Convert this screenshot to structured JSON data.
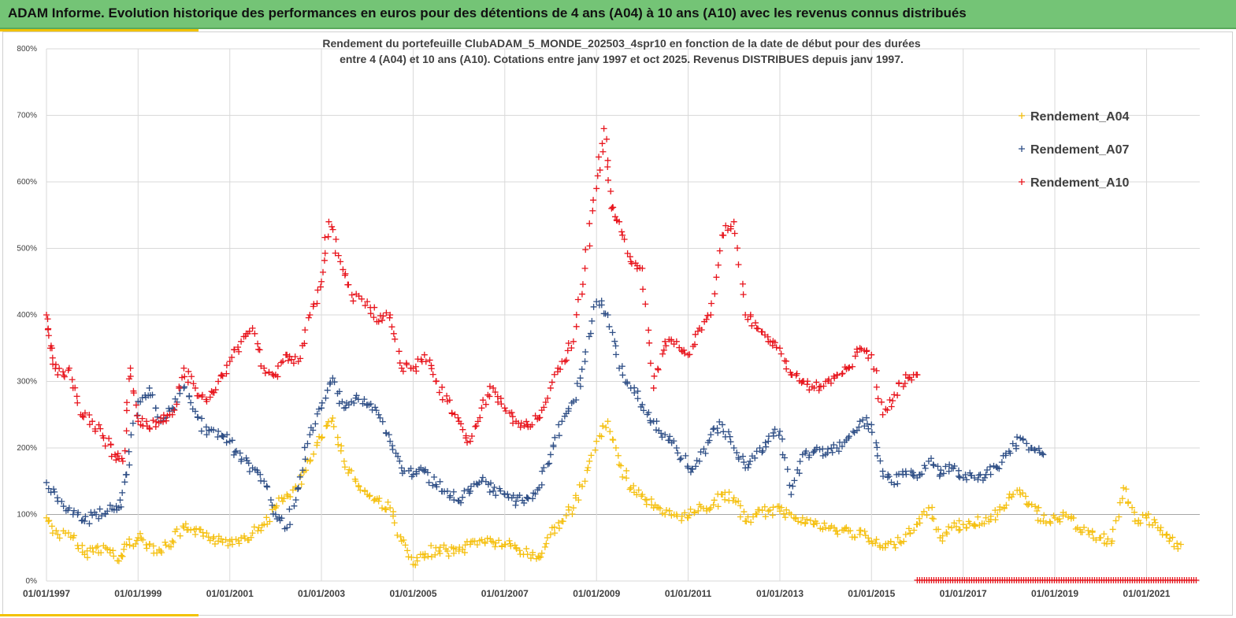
{
  "header": {
    "title": "ADAM Informe. Evolution historique des performances en euros pour des détentions de 4 ans (A04) à 10 ans (A10) avec les revenus connus distribués"
  },
  "colors": {
    "banner": "#74c476",
    "accent": "#f2c200",
    "A04": "#f5c010",
    "A07": "#2f4f86",
    "A10": "#e8141c",
    "grid": "#d9d9d9"
  },
  "chart_data": {
    "type": "scatter",
    "title_line1": "Rendement du portefeuille ClubADAM_5_MONDE_202503_4spr10  en fonction de la date de début pour des durées",
    "title_line2": "entre 4 (A04) et 10 ans (A10). Cotations entre janv 1997 et oct 2025. Revenus DISTRIBUES depuis janv 1997.",
    "xlabel": "",
    "ylabel": "",
    "xlim": [
      "1997-01-01",
      "2022-03-01"
    ],
    "ylim": [
      0,
      800
    ],
    "y_ticks": [
      "0%",
      "100%",
      "200%",
      "300%",
      "400%",
      "500%",
      "600%",
      "700%",
      "800%"
    ],
    "x_ticks": [
      "01/01/1997",
      "01/01/1999",
      "01/01/2001",
      "01/01/2003",
      "01/01/2005",
      "01/01/2007",
      "01/01/2009",
      "01/01/2011",
      "01/01/2013",
      "01/01/2015",
      "01/01/2017",
      "01/01/2019",
      "01/01/2021"
    ],
    "grid": true,
    "legend_position": "top-right",
    "marker": "+",
    "series": [
      {
        "name": "Rendement_A04",
        "color": "#f5c010",
        "points": [
          [
            "1997-01-01",
            95
          ],
          [
            "1997-04-01",
            70
          ],
          [
            "1997-08-01",
            65
          ],
          [
            "1997-11-01",
            40
          ],
          [
            "1998-02-01",
            50
          ],
          [
            "1998-05-01",
            48
          ],
          [
            "1998-08-01",
            30
          ],
          [
            "1998-10-01",
            55
          ],
          [
            "1999-01-01",
            65
          ],
          [
            "1999-04-01",
            55
          ],
          [
            "1999-07-01",
            45
          ],
          [
            "1999-10-01",
            60
          ],
          [
            "2000-01-01",
            80
          ],
          [
            "2000-04-01",
            70
          ],
          [
            "2000-07-01",
            72
          ],
          [
            "2000-10-01",
            60
          ],
          [
            "2001-01-01",
            60
          ],
          [
            "2001-04-01",
            65
          ],
          [
            "2001-07-01",
            72
          ],
          [
            "2001-10-01",
            85
          ],
          [
            "2002-01-01",
            110
          ],
          [
            "2002-04-01",
            130
          ],
          [
            "2002-07-01",
            140
          ],
          [
            "2002-10-01",
            180
          ],
          [
            "2003-01-01",
            215
          ],
          [
            "2003-04-01",
            245
          ],
          [
            "2003-07-01",
            180
          ],
          [
            "2003-10-01",
            150
          ],
          [
            "2004-01-01",
            130
          ],
          [
            "2004-04-01",
            120
          ],
          [
            "2004-07-01",
            110
          ],
          [
            "2004-10-01",
            60
          ],
          [
            "2005-01-01",
            25
          ],
          [
            "2005-04-01",
            35
          ],
          [
            "2005-07-01",
            50
          ],
          [
            "2005-10-01",
            45
          ],
          [
            "2006-01-01",
            45
          ],
          [
            "2006-04-01",
            55
          ],
          [
            "2006-07-01",
            62
          ],
          [
            "2006-10-01",
            58
          ],
          [
            "2007-01-01",
            55
          ],
          [
            "2007-04-01",
            50
          ],
          [
            "2007-07-01",
            40
          ],
          [
            "2007-10-01",
            35
          ],
          [
            "2008-01-01",
            70
          ],
          [
            "2008-04-01",
            90
          ],
          [
            "2008-07-01",
            110
          ],
          [
            "2008-10-01",
            150
          ],
          [
            "2009-01-01",
            210
          ],
          [
            "2009-04-01",
            240
          ],
          [
            "2009-07-01",
            175
          ],
          [
            "2009-10-01",
            140
          ],
          [
            "2010-01-01",
            130
          ],
          [
            "2010-04-01",
            110
          ],
          [
            "2010-07-01",
            100
          ],
          [
            "2010-10-01",
            100
          ],
          [
            "2011-01-01",
            95
          ],
          [
            "2011-04-01",
            115
          ],
          [
            "2011-07-01",
            110
          ],
          [
            "2011-10-01",
            130
          ],
          [
            "2012-01-01",
            125
          ],
          [
            "2012-04-01",
            90
          ],
          [
            "2012-07-01",
            100
          ],
          [
            "2012-10-01",
            105
          ],
          [
            "2013-01-01",
            105
          ],
          [
            "2013-04-01",
            100
          ],
          [
            "2013-07-01",
            95
          ],
          [
            "2013-10-01",
            85
          ],
          [
            "2014-01-01",
            80
          ],
          [
            "2014-04-01",
            75
          ],
          [
            "2014-07-01",
            75
          ],
          [
            "2014-10-01",
            70
          ],
          [
            "2015-01-01",
            60
          ],
          [
            "2015-04-01",
            50
          ],
          [
            "2015-07-01",
            55
          ],
          [
            "2015-10-01",
            70
          ],
          [
            "2016-01-01",
            85
          ],
          [
            "2016-04-01",
            110
          ],
          [
            "2016-07-01",
            65
          ],
          [
            "2016-10-01",
            80
          ],
          [
            "2017-01-01",
            85
          ],
          [
            "2017-04-01",
            85
          ],
          [
            "2017-07-01",
            95
          ],
          [
            "2017-10-01",
            100
          ],
          [
            "2018-01-01",
            125
          ],
          [
            "2018-04-01",
            130
          ],
          [
            "2018-07-01",
            115
          ],
          [
            "2018-10-01",
            90
          ],
          [
            "2019-01-01",
            95
          ],
          [
            "2019-04-01",
            100
          ],
          [
            "2019-07-01",
            80
          ],
          [
            "2019-10-01",
            70
          ],
          [
            "2020-01-01",
            65
          ],
          [
            "2020-04-01",
            60
          ],
          [
            "2020-07-01",
            140
          ],
          [
            "2020-10-01",
            90
          ],
          [
            "2021-01-01",
            95
          ],
          [
            "2021-04-01",
            80
          ],
          [
            "2021-07-01",
            60
          ],
          [
            "2021-10-01",
            55
          ]
        ]
      },
      {
        "name": "Rendement_A07",
        "color": "#2f4f86",
        "points": [
          [
            "1997-01-01",
            148
          ],
          [
            "1997-04-01",
            120
          ],
          [
            "1997-08-01",
            100
          ],
          [
            "1997-11-01",
            90
          ],
          [
            "1998-02-01",
            100
          ],
          [
            "1998-05-01",
            105
          ],
          [
            "1998-08-01",
            110
          ],
          [
            "1998-10-01",
            160
          ],
          [
            "1999-01-01",
            270
          ],
          [
            "1999-04-01",
            290
          ],
          [
            "1999-07-01",
            240
          ],
          [
            "1999-10-01",
            260
          ],
          [
            "2000-01-01",
            290
          ],
          [
            "2000-04-01",
            255
          ],
          [
            "2000-07-01",
            220
          ],
          [
            "2000-10-01",
            225
          ],
          [
            "2001-01-01",
            210
          ],
          [
            "2001-04-01",
            180
          ],
          [
            "2001-07-01",
            170
          ],
          [
            "2001-10-01",
            150
          ],
          [
            "2002-01-01",
            100
          ],
          [
            "2002-04-01",
            80
          ],
          [
            "2002-07-01",
            140
          ],
          [
            "2002-10-01",
            220
          ],
          [
            "2003-01-01",
            260
          ],
          [
            "2003-04-01",
            305
          ],
          [
            "2003-07-01",
            260
          ],
          [
            "2003-10-01",
            275
          ],
          [
            "2004-01-01",
            265
          ],
          [
            "2004-04-01",
            250
          ],
          [
            "2004-07-01",
            210
          ],
          [
            "2004-10-01",
            170
          ],
          [
            "2005-01-01",
            160
          ],
          [
            "2005-04-01",
            165
          ],
          [
            "2005-07-01",
            145
          ],
          [
            "2005-10-01",
            135
          ],
          [
            "2006-01-01",
            120
          ],
          [
            "2006-04-01",
            135
          ],
          [
            "2006-07-01",
            150
          ],
          [
            "2006-10-01",
            135
          ],
          [
            "2007-01-01",
            130
          ],
          [
            "2007-04-01",
            120
          ],
          [
            "2007-07-01",
            125
          ],
          [
            "2007-10-01",
            140
          ],
          [
            "2008-01-01",
            190
          ],
          [
            "2008-04-01",
            240
          ],
          [
            "2008-07-01",
            270
          ],
          [
            "2008-10-01",
            330
          ],
          [
            "2009-01-01",
            420
          ],
          [
            "2009-04-01",
            400
          ],
          [
            "2009-07-01",
            320
          ],
          [
            "2009-10-01",
            290
          ],
          [
            "2010-01-01",
            265
          ],
          [
            "2010-04-01",
            240
          ],
          [
            "2010-07-01",
            220
          ],
          [
            "2010-10-01",
            200
          ],
          [
            "2011-01-01",
            170
          ],
          [
            "2011-04-01",
            180
          ],
          [
            "2011-07-01",
            220
          ],
          [
            "2011-10-01",
            235
          ],
          [
            "2012-01-01",
            200
          ],
          [
            "2012-04-01",
            170
          ],
          [
            "2012-07-01",
            195
          ],
          [
            "2012-10-01",
            210
          ],
          [
            "2013-01-01",
            225
          ],
          [
            "2013-04-01",
            130
          ],
          [
            "2013-07-01",
            190
          ],
          [
            "2013-10-01",
            195
          ],
          [
            "2014-01-01",
            190
          ],
          [
            "2014-04-01",
            200
          ],
          [
            "2014-07-01",
            215
          ],
          [
            "2014-10-01",
            240
          ],
          [
            "2015-01-01",
            235
          ],
          [
            "2015-04-01",
            165
          ],
          [
            "2015-07-01",
            145
          ],
          [
            "2015-10-01",
            165
          ],
          [
            "2016-01-01",
            155
          ],
          [
            "2016-04-01",
            180
          ],
          [
            "2016-07-01",
            160
          ],
          [
            "2016-10-01",
            170
          ],
          [
            "2017-01-01",
            155
          ],
          [
            "2017-04-01",
            155
          ],
          [
            "2017-07-01",
            160
          ],
          [
            "2017-10-01",
            170
          ],
          [
            "2018-01-01",
            195
          ],
          [
            "2018-04-01",
            215
          ],
          [
            "2018-07-01",
            200
          ],
          [
            "2018-10-01",
            190
          ]
        ]
      },
      {
        "name": "Rendement_A10",
        "color": "#e8141c",
        "points": [
          [
            "1997-01-01",
            400
          ],
          [
            "1997-02-01",
            350
          ],
          [
            "1997-04-01",
            310
          ],
          [
            "1997-07-01",
            320
          ],
          [
            "1997-10-01",
            250
          ],
          [
            "1998-01-01",
            240
          ],
          [
            "1998-04-01",
            215
          ],
          [
            "1998-07-01",
            190
          ],
          [
            "1998-09-01",
            180
          ],
          [
            "1998-11-01",
            320
          ],
          [
            "1999-01-01",
            240
          ],
          [
            "1999-04-01",
            230
          ],
          [
            "1999-07-01",
            245
          ],
          [
            "1999-10-01",
            250
          ],
          [
            "2000-01-01",
            320
          ],
          [
            "2000-04-01",
            290
          ],
          [
            "2000-07-01",
            270
          ],
          [
            "2000-10-01",
            300
          ],
          [
            "2001-01-01",
            330
          ],
          [
            "2001-04-01",
            360
          ],
          [
            "2001-07-01",
            380
          ],
          [
            "2001-10-01",
            320
          ],
          [
            "2002-01-01",
            310
          ],
          [
            "2002-04-01",
            340
          ],
          [
            "2002-07-01",
            330
          ],
          [
            "2002-10-01",
            400
          ],
          [
            "2003-01-01",
            450
          ],
          [
            "2003-03-01",
            540
          ],
          [
            "2003-06-01",
            480
          ],
          [
            "2003-09-01",
            430
          ],
          [
            "2004-01-01",
            420
          ],
          [
            "2004-04-01",
            390
          ],
          [
            "2004-07-01",
            400
          ],
          [
            "2004-10-01",
            320
          ],
          [
            "2005-01-01",
            320
          ],
          [
            "2005-04-01",
            340
          ],
          [
            "2005-07-01",
            300
          ],
          [
            "2005-10-01",
            270
          ],
          [
            "2006-01-01",
            240
          ],
          [
            "2006-04-01",
            210
          ],
          [
            "2006-07-01",
            260
          ],
          [
            "2006-10-01",
            290
          ],
          [
            "2007-01-01",
            260
          ],
          [
            "2007-04-01",
            240
          ],
          [
            "2007-07-01",
            235
          ],
          [
            "2007-10-01",
            245
          ],
          [
            "2008-01-01",
            290
          ],
          [
            "2008-04-01",
            330
          ],
          [
            "2008-07-01",
            360
          ],
          [
            "2008-10-01",
            470
          ],
          [
            "2009-01-01",
            590
          ],
          [
            "2009-03-01",
            680
          ],
          [
            "2009-05-01",
            560
          ],
          [
            "2009-07-01",
            540
          ],
          [
            "2009-10-01",
            480
          ],
          [
            "2010-01-01",
            470
          ],
          [
            "2010-04-01",
            290
          ],
          [
            "2010-07-01",
            360
          ],
          [
            "2010-10-01",
            360
          ],
          [
            "2011-01-01",
            340
          ],
          [
            "2011-04-01",
            380
          ],
          [
            "2011-07-01",
            400
          ],
          [
            "2011-10-01",
            520
          ],
          [
            "2012-01-01",
            540
          ],
          [
            "2012-04-01",
            400
          ],
          [
            "2012-07-01",
            380
          ],
          [
            "2012-10-01",
            360
          ],
          [
            "2013-01-01",
            350
          ],
          [
            "2013-04-01",
            310
          ],
          [
            "2013-07-01",
            300
          ],
          [
            "2013-10-01",
            290
          ],
          [
            "2014-01-01",
            300
          ],
          [
            "2014-04-01",
            310
          ],
          [
            "2014-07-01",
            320
          ],
          [
            "2014-10-01",
            350
          ],
          [
            "2015-01-01",
            340
          ],
          [
            "2015-04-01",
            250
          ],
          [
            "2015-07-01",
            280
          ],
          [
            "2015-10-01",
            310
          ],
          [
            "2016-01-01",
            310
          ]
        ]
      }
    ]
  }
}
